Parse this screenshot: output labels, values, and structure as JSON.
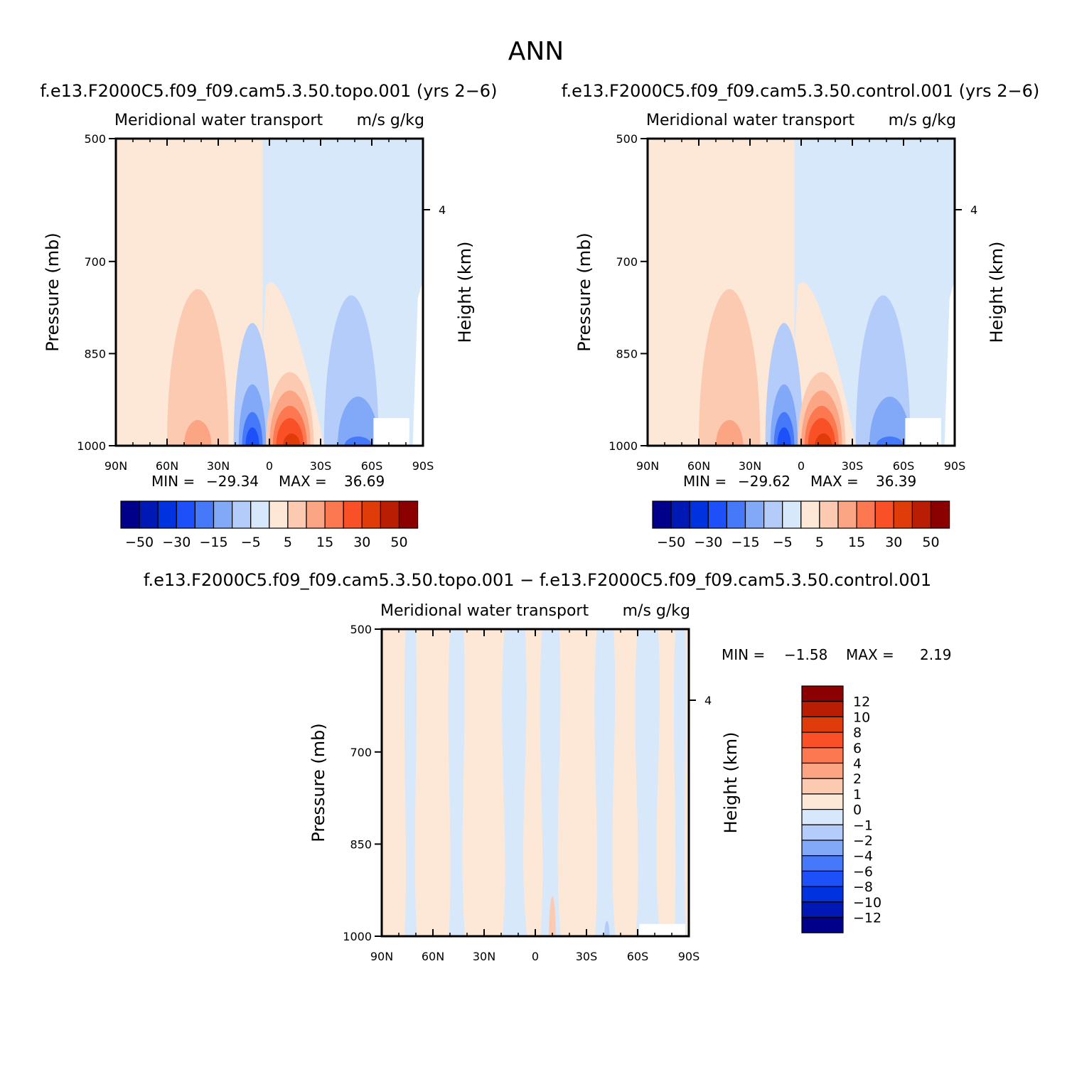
{
  "title": "ANN",
  "colors": {
    "blue_scale": [
      "#00008b",
      "#0019b4",
      "#0032e0",
      "#1e50fa",
      "#4678fa",
      "#82a8f8",
      "#b4ccfa",
      "#d7e8fa"
    ],
    "red_scale": [
      "#fde8d8",
      "#fccab0",
      "#fba584",
      "#fb7850",
      "#fa5028",
      "#e03c0a",
      "#b91e05",
      "#8b0000"
    ]
  },
  "panels": [
    {
      "id": "topo",
      "case_title": "f.e13.F2000C5.f09_f09.cam5.3.50.topo.001  (yrs 2−6)",
      "var_label": "Meridional water transport",
      "units_label": "m/s g/kg",
      "ylabel": "Pressure (mb)",
      "right_label": "Height (km)",
      "stats": {
        "min_label": "MIN  =",
        "min": "−29.34",
        "max_label": "MAX  =",
        "max": "36.69"
      }
    },
    {
      "id": "control",
      "case_title": "f.e13.F2000C5.f09_f09.cam5.3.50.control.001  (yrs 2−6)",
      "var_label": "Meridional water transport",
      "units_label": "m/s g/kg",
      "ylabel": "Pressure (mb)",
      "right_label": "Height (km)",
      "stats": {
        "min_label": "MIN  =",
        "min": "−29.62",
        "max_label": "MAX  =",
        "max": "36.39"
      }
    },
    {
      "id": "diff",
      "case_title": "f.e13.F2000C5.f09_f09.cam5.3.50.topo.001  −  f.e13.F2000C5.f09_f09.cam5.3.50.control.001",
      "var_label": "Meridional water transport",
      "units_label": "m/s g/kg",
      "ylabel": "Pressure (mb)",
      "right_label": "Height (km)",
      "stats": {
        "min_label": "MIN  =",
        "min": "−1.58",
        "max_label": "MAX  =",
        "max": "2.19"
      }
    }
  ],
  "chart_data": [
    {
      "type": "heatmap",
      "title": "f.e13.F2000C5.f09_f09.cam5.3.50.topo.001  (yrs 2−6)",
      "subtitle": "Meridional water transport",
      "units": "m/s g/kg",
      "xlabel": "",
      "ylabel": "Pressure (mb)",
      "y2label": "Height (km)",
      "x_ticks": [
        "90N",
        "60N",
        "30N",
        "0",
        "30S",
        "60S",
        "90S"
      ],
      "x_range": [
        "90N",
        "90S"
      ],
      "y_ticks": [
        500,
        700,
        850,
        1000
      ],
      "y_range": [
        500,
        1000
      ],
      "y2_ticks": [
        4
      ],
      "contour_levels": [
        -50,
        -40,
        -30,
        -20,
        -15,
        -10,
        -5,
        0,
        5,
        10,
        15,
        20,
        30,
        40,
        50
      ],
      "colorbar_labels": [
        "−50",
        "−30",
        "−15",
        "−5",
        "5",
        "15",
        "30",
        "50"
      ],
      "min": -29.34,
      "max": 36.69
    },
    {
      "type": "heatmap",
      "title": "f.e13.F2000C5.f09_f09.cam5.3.50.control.001  (yrs 2−6)",
      "subtitle": "Meridional water transport",
      "units": "m/s g/kg",
      "xlabel": "",
      "ylabel": "Pressure (mb)",
      "y2label": "Height (km)",
      "x_ticks": [
        "90N",
        "60N",
        "30N",
        "0",
        "30S",
        "60S",
        "90S"
      ],
      "x_range": [
        "90N",
        "90S"
      ],
      "y_ticks": [
        500,
        700,
        850,
        1000
      ],
      "y_range": [
        500,
        1000
      ],
      "y2_ticks": [
        4
      ],
      "contour_levels": [
        -50,
        -40,
        -30,
        -20,
        -15,
        -10,
        -5,
        0,
        5,
        10,
        15,
        20,
        30,
        40,
        50
      ],
      "colorbar_labels": [
        "−50",
        "−30",
        "−15",
        "−5",
        "5",
        "15",
        "30",
        "50"
      ],
      "min": -29.62,
      "max": 36.39
    },
    {
      "type": "heatmap",
      "title": "f.e13.F2000C5.f09_f09.cam5.3.50.topo.001  −  f.e13.F2000C5.f09_f09.cam5.3.50.control.001",
      "subtitle": "Meridional water transport",
      "units": "m/s g/kg",
      "xlabel": "",
      "ylabel": "Pressure (mb)",
      "y2label": "Height (km)",
      "x_ticks": [
        "90N",
        "60N",
        "30N",
        "0",
        "30S",
        "60S",
        "90S"
      ],
      "x_range": [
        "90N",
        "90S"
      ],
      "y_ticks": [
        500,
        700,
        850,
        1000
      ],
      "y_range": [
        500,
        1000
      ],
      "y2_ticks": [
        4
      ],
      "contour_levels": [
        -12,
        -10,
        -8,
        -6,
        -4,
        -2,
        -1,
        0,
        1,
        2,
        4,
        6,
        8,
        10,
        12
      ],
      "colorbar_labels": [
        "12",
        "10",
        "8",
        "6",
        "4",
        "2",
        "1",
        "0",
        "−1",
        "−2",
        "−4",
        "−6",
        "−8",
        "−10",
        "−12"
      ],
      "min": -1.58,
      "max": 2.19
    }
  ]
}
